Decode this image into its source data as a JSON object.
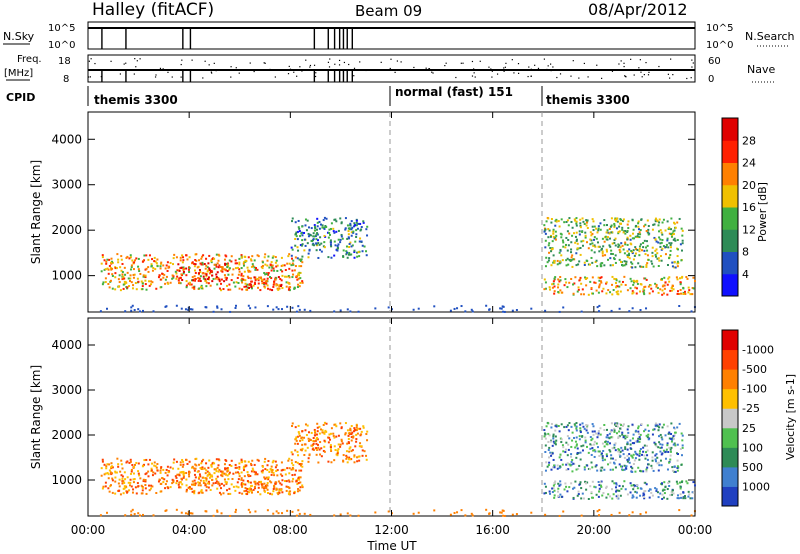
{
  "header": {
    "station": "Halley (fitACF)",
    "beam": "Beam 09",
    "date": "08/Apr/2012"
  },
  "top_strips": {
    "nsky_label": "N.Sky",
    "nsky_ticks": [
      "10^5",
      "10^0"
    ],
    "nsearch_label": "N.Search",
    "nsearch_ticks": [
      "10^5",
      "10^0"
    ],
    "freq_label": "Freq.",
    "freq_unit": "[MHz]",
    "freq_ticks": [
      "18",
      "8"
    ],
    "nave_label": "Nave",
    "nave_ticks": [
      "60",
      "0"
    ],
    "cpid_label": "CPID",
    "cpid_segments": [
      {
        "label": "themis 3300",
        "start_hour": 0
      },
      {
        "label": "normal (fast) 151",
        "start_hour": 12
      },
      {
        "label": "themis 3300",
        "start_hour": 18
      }
    ],
    "gap_hours": [
      0.55,
      1.5,
      3.75,
      4.05,
      8.95,
      9.5,
      9.75,
      9.95,
      10.1,
      10.25,
      10.45
    ]
  },
  "chart_data": [
    {
      "type": "heatmap",
      "title": "Power",
      "x_range_hours": [
        0,
        24
      ],
      "xlabel": "Time UT",
      "ylabel": "Slant Range [km]",
      "ylim": [
        200,
        4600
      ],
      "y_ticks": [
        1000,
        2000,
        3000,
        4000
      ],
      "colorbar": {
        "label": "Power [dB]",
        "ticks": [
          4,
          8,
          12,
          16,
          20,
          24,
          28
        ],
        "colors": [
          "#1010ff",
          "#2050c0",
          "#2e8b57",
          "#40b040",
          "#f0c000",
          "#ff8000",
          "#ff2000",
          "#e00000"
        ]
      },
      "blobs": [
        {
          "t0": 0.5,
          "t1": 8.5,
          "r0": 700,
          "r1": 1500,
          "level": 20
        },
        {
          "t0": 3.5,
          "t1": 5.5,
          "r0": 900,
          "r1": 1300,
          "level": 28
        },
        {
          "t0": 6.0,
          "t1": 8.0,
          "r0": 700,
          "r1": 1000,
          "level": 24
        },
        {
          "t0": 18.0,
          "t1": 24.0,
          "r0": 600,
          "r1": 1000,
          "level": 20
        },
        {
          "t0": 18.0,
          "t1": 23.5,
          "r0": 1200,
          "r1": 2300,
          "level": 14
        },
        {
          "t0": 8.0,
          "t1": 11.0,
          "r0": 1400,
          "r1": 2300,
          "level": 10
        }
      ]
    },
    {
      "type": "heatmap",
      "title": "Velocity",
      "x_range_hours": [
        0,
        24
      ],
      "xlabel": "Time UT",
      "ylabel": "Slant Range [km]",
      "ylim": [
        200,
        4600
      ],
      "y_ticks": [
        1000,
        2000,
        3000,
        4000
      ],
      "colorbar": {
        "label": "Velocity [m s-1]",
        "ticks": [
          "1000",
          "500",
          "100",
          "25",
          "-25",
          "-100",
          "-500",
          "-1000"
        ],
        "colors": [
          "#2040c0",
          "#4080d0",
          "#2e8b57",
          "#50c050",
          "#c8c8c8",
          "#ffc000",
          "#ff8000",
          "#ff4000",
          "#e00000"
        ]
      },
      "x_tick_labels": [
        "00:00",
        "04:00",
        "08:00",
        "12:00",
        "16:00",
        "20:00",
        "00:00"
      ]
    }
  ]
}
